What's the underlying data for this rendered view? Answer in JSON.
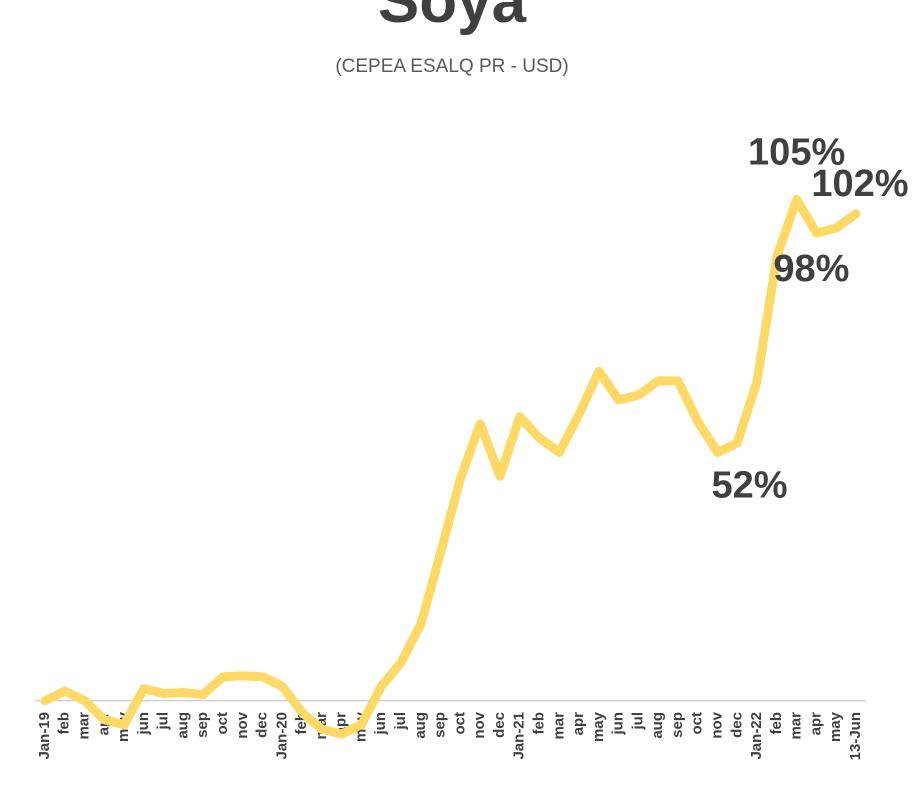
{
  "chart_data": {
    "type": "line",
    "title": "Soya",
    "subtitle": "(CEPEA ESALQ PR - USD)",
    "categories": [
      "Jan-19",
      "feb",
      "mar",
      "apr",
      "may",
      "jun",
      "jul",
      "aug",
      "sep",
      "oct",
      "nov",
      "dec",
      "Jan-20",
      "feb",
      "mar",
      "apr",
      "may",
      "jun",
      "jul",
      "aug",
      "sep",
      "oct",
      "nov",
      "dec",
      "Jan-21",
      "feb",
      "mar",
      "apr",
      "may",
      "jun",
      "jul",
      "aug",
      "sep",
      "oct",
      "nov",
      "dec",
      "Jan-22",
      "feb",
      "mar",
      "apr",
      "may",
      "13-Jun"
    ],
    "series": [
      {
        "name": "Soya",
        "color": "#ffd966",
        "values": [
          0,
          2,
          0,
          -4,
          -5,
          2.5,
          1.5,
          1.7,
          1.3,
          5,
          5.2,
          5,
          3,
          -2.5,
          -6,
          -7,
          -5,
          3,
          8,
          16,
          31,
          46.5,
          58,
          47,
          59.5,
          55,
          52,
          60,
          69,
          63,
          64,
          67,
          67,
          58.5,
          52,
          54,
          67,
          93,
          105,
          98,
          99,
          102
        ],
        "value_labels": [
          null,
          null,
          null,
          null,
          null,
          null,
          null,
          null,
          null,
          null,
          null,
          null,
          null,
          null,
          null,
          null,
          null,
          null,
          null,
          null,
          null,
          null,
          null,
          null,
          null,
          null,
          null,
          null,
          null,
          null,
          null,
          null,
          null,
          null,
          "52%",
          null,
          null,
          null,
          "105%",
          "98%",
          null,
          "102%"
        ]
      }
    ],
    "ylim": [
      -10,
      110
    ]
  }
}
